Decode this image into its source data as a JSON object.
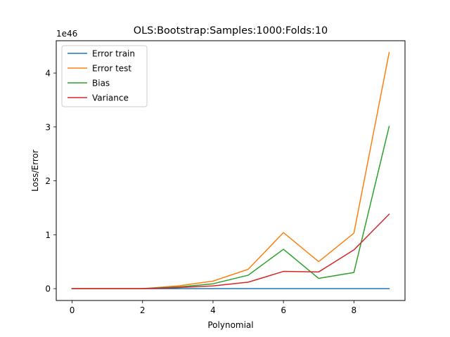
{
  "chart_data": {
    "type": "line",
    "title": "OLS:Bootstrap:Samples:1000:Folds:10",
    "xlabel": "Polynomial",
    "ylabel": "Loss/Error",
    "y_offset_text": "1e46",
    "xlim": [
      -0.45,
      9.45
    ],
    "ylim": [
      -0.22,
      4.6
    ],
    "x_ticks": [
      0,
      2,
      4,
      6,
      8
    ],
    "y_ticks": [
      0,
      1,
      2,
      3,
      4
    ],
    "grid": false,
    "legend_position": "upper-left",
    "x": [
      0,
      1,
      2,
      3,
      4,
      5,
      6,
      7,
      8,
      9
    ],
    "series": [
      {
        "name": "Error train",
        "color": "#1f77b4",
        "values": [
          0,
          0,
          0,
          0,
          0,
          0,
          0,
          0,
          0,
          0
        ]
      },
      {
        "name": "Error test",
        "color": "#ff7f0e",
        "values": [
          0.0,
          0.0,
          0.0,
          0.05,
          0.14,
          0.36,
          1.04,
          0.5,
          1.03,
          4.38
        ]
      },
      {
        "name": "Bias",
        "color": "#2ca02c",
        "values": [
          0.0,
          0.0,
          0.0,
          0.03,
          0.09,
          0.25,
          0.73,
          0.19,
          0.3,
          3.01
        ]
      },
      {
        "name": "Variance",
        "color": "#d62728",
        "values": [
          0.0,
          0.0,
          0.0,
          0.02,
          0.05,
          0.12,
          0.32,
          0.31,
          0.72,
          1.38
        ]
      }
    ]
  }
}
